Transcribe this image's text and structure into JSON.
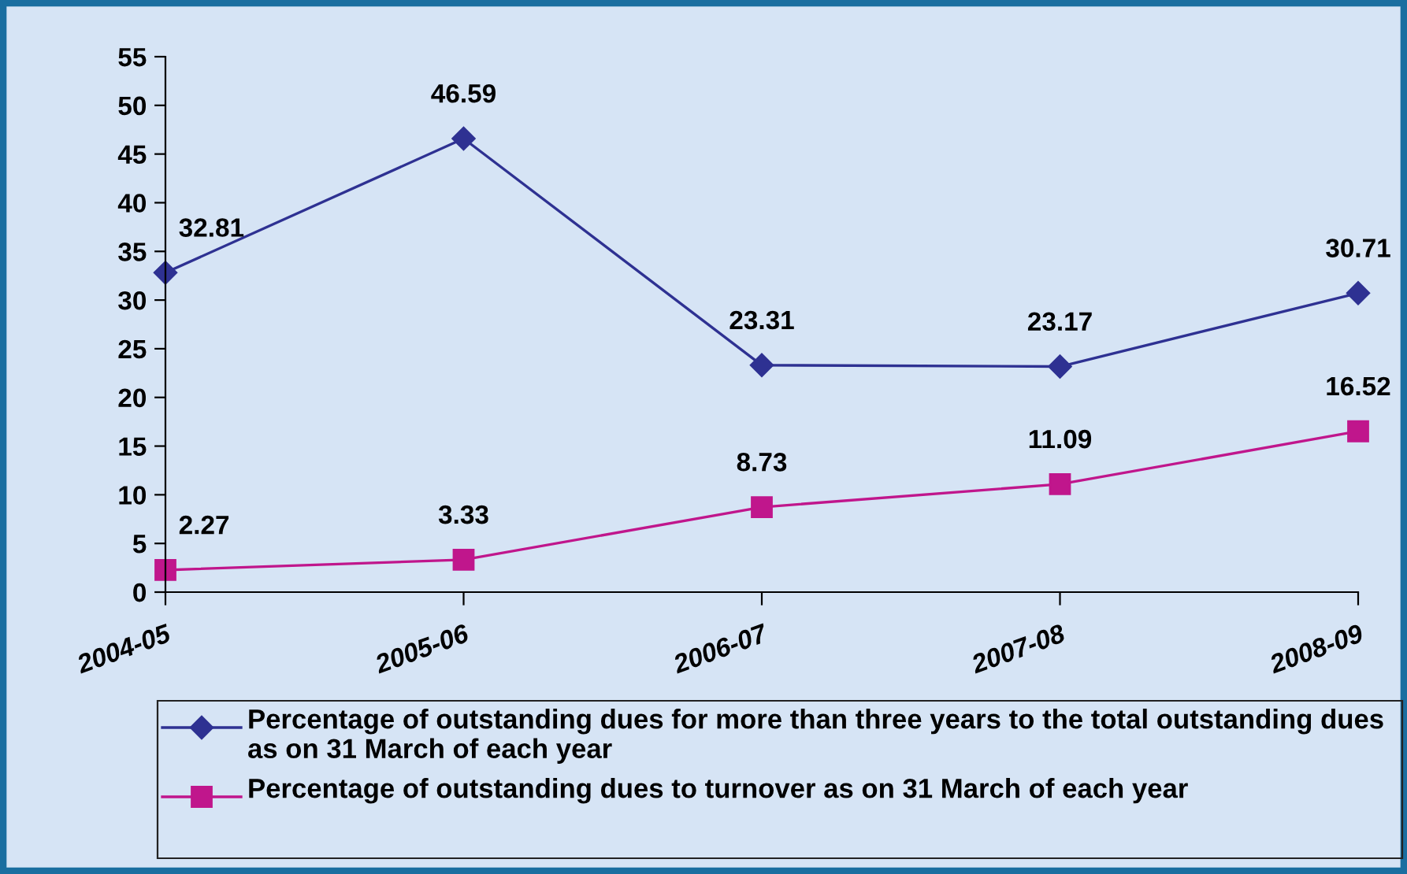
{
  "chart_data": {
    "type": "line",
    "categories": [
      "2004-05",
      "2005-06",
      "2006-07",
      "2007-08",
      "2008-09"
    ],
    "series": [
      {
        "name": "Percentage of outstanding dues for more than three years to the total outstanding dues as on 31 March of each year",
        "color": "#2e3192",
        "marker": "diamond",
        "values": [
          32.81,
          46.59,
          23.31,
          23.17,
          30.71
        ]
      },
      {
        "name": "Percentage of outstanding dues to turnover as on 31 March of each year",
        "color": "#c0168c",
        "marker": "square",
        "values": [
          2.27,
          3.33,
          8.73,
          11.09,
          16.52
        ]
      }
    ],
    "ylim": [
      0,
      55
    ],
    "yticks": [
      0,
      5,
      10,
      15,
      20,
      25,
      30,
      35,
      40,
      45,
      50,
      55
    ],
    "data_labels": true,
    "legend": "bottom",
    "grid": false,
    "line_style": "solid"
  }
}
